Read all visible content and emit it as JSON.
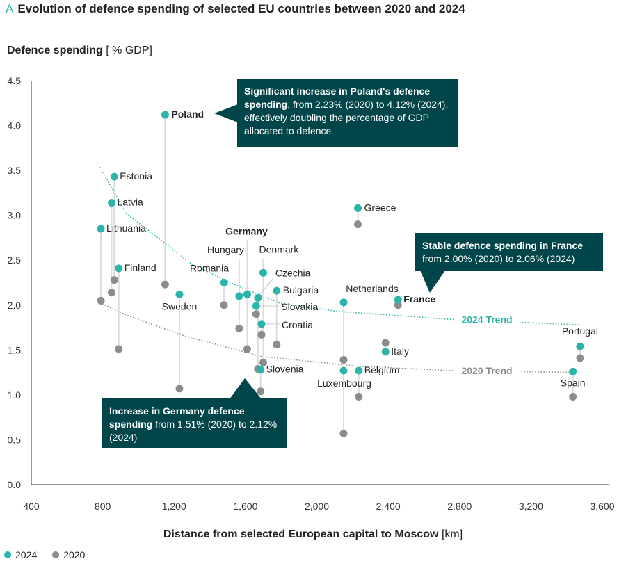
{
  "colors": {
    "y2024": "#2bb5aa",
    "y2020": "#8c8c8c",
    "stem": "#dcdcdc",
    "callout_bg": "#00454a",
    "axis": "#555555"
  },
  "chart_data": {
    "type": "scatter",
    "title_letter": "A",
    "title": "Evolution of defence spending of selected EU countries between 2020 and 2024",
    "ylabel": "Defence spending",
    "ylabel_unit": "[ % GDP]",
    "xlabel": "Distance from selected European capital to Moscow",
    "xlabel_unit": "[km]",
    "xlim": [
      400,
      3600
    ],
    "ylim": [
      0,
      4.5
    ],
    "xticks": [
      "400",
      "800",
      "1,200",
      "1,600",
      "2,000",
      "2,400",
      "2,800",
      "3,200",
      "3,600"
    ],
    "xtick_values": [
      400,
      800,
      1200,
      1600,
      2000,
      2400,
      2800,
      3200,
      3600
    ],
    "yticks": [
      "0.0",
      "0.5",
      "1.0",
      "1.5",
      "2.0",
      "2.5",
      "3.0",
      "3.5",
      "4.0",
      "4.5"
    ],
    "ytick_values": [
      0,
      0.5,
      1,
      1.5,
      2,
      2.5,
      3,
      3.5,
      4,
      4.5
    ],
    "grid": false,
    "legend": {
      "placement": "bottom-left",
      "entries": [
        "2024",
        "2020"
      ]
    },
    "series_names": [
      "2024",
      "2020"
    ],
    "countries": [
      {
        "name": "Poland",
        "distance_km": 1150,
        "v2024": 4.12,
        "v2020": 2.23,
        "bold": true
      },
      {
        "name": "Estonia",
        "distance_km": 865,
        "v2024": 3.43,
        "v2020": 2.28
      },
      {
        "name": "Latvia",
        "distance_km": 850,
        "v2024": 3.14,
        "v2020": 2.14
      },
      {
        "name": "Lithuania",
        "distance_km": 790,
        "v2024": 2.85,
        "v2020": 2.05
      },
      {
        "name": "Finland",
        "distance_km": 890,
        "v2024": 2.41,
        "v2020": 1.51
      },
      {
        "name": "Sweden",
        "distance_km": 1230,
        "v2024": 2.12,
        "v2020": 1.07
      },
      {
        "name": "Romania",
        "distance_km": 1480,
        "v2024": 2.25,
        "v2020": 2.0
      },
      {
        "name": "Hungary",
        "distance_km": 1565,
        "v2024": 2.1,
        "v2020": 1.74
      },
      {
        "name": "Germany",
        "distance_km": 1610,
        "v2024": 2.12,
        "v2020": 1.51,
        "bold": true
      },
      {
        "name": "Denmark",
        "distance_km": 1700,
        "v2024": 2.36,
        "v2020": 1.36
      },
      {
        "name": "Czechia",
        "distance_km": 1670,
        "v2024": 2.08,
        "v2020": 1.29
      },
      {
        "name": "Bulgaria",
        "distance_km": 1775,
        "v2024": 2.16,
        "v2020": 1.56
      },
      {
        "name": "Slovakia",
        "distance_km": 1660,
        "v2024": 1.99,
        "v2020": 1.9
      },
      {
        "name": "Croatia",
        "distance_km": 1690,
        "v2024": 1.79,
        "v2020": 1.67
      },
      {
        "name": "Slovenia",
        "distance_km": 1685,
        "v2024": 1.28,
        "v2020": 1.04
      },
      {
        "name": "Netherlands",
        "distance_km": 2150,
        "v2024": 2.03,
        "v2020": 1.39
      },
      {
        "name": "Luxembourg",
        "distance_km": 2150,
        "v2024": 1.27,
        "v2020": 0.57
      },
      {
        "name": "Belgium",
        "distance_km": 2235,
        "v2024": 1.27,
        "v2020": 0.98
      },
      {
        "name": "Greece",
        "distance_km": 2230,
        "v2024": 3.08,
        "v2020": 2.9
      },
      {
        "name": "Italy",
        "distance_km": 2385,
        "v2024": 1.48,
        "v2020": 1.58
      },
      {
        "name": "France",
        "distance_km": 2455,
        "v2024": 2.06,
        "v2020": 2.0,
        "bold": true
      },
      {
        "name": "Portugal",
        "distance_km": 3475,
        "v2024": 1.54,
        "v2020": 1.41
      },
      {
        "name": "Spain",
        "distance_km": 3435,
        "v2024": 1.26,
        "v2020": 0.98
      }
    ],
    "trends": [
      {
        "name": "2024 Trend",
        "x": [
          769,
          932,
          1083,
          1297,
          1515,
          1794,
          2117,
          2765,
          3470
        ],
        "y": [
          3.59,
          3.02,
          2.79,
          2.46,
          2.25,
          2.02,
          1.93,
          1.84,
          1.78
        ]
      },
      {
        "name": "2020 Trend",
        "x": [
          769,
          932,
          1254,
          1685,
          2225,
          2765,
          3440
        ],
        "y": [
          2.04,
          1.89,
          1.66,
          1.43,
          1.32,
          1.27,
          1.25
        ]
      }
    ]
  },
  "callouts": {
    "poland": {
      "bold": "Significant increase in Poland's defence spending",
      "text": ", from 2.23% (2020) to 4.12% (2024), effectively doubling the percentage of GDP allocated to defence"
    },
    "france": {
      "bold": "Stable defence spending in France",
      "text": " from 2.00% (2020) to 2.06% (2024)"
    },
    "germany": {
      "bold": "Increase in Germany defence spending",
      "text": " from 1.51% (2020) to 2.12% (2024)"
    }
  }
}
